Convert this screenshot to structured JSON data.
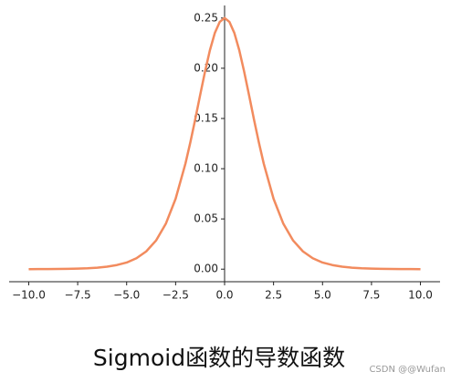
{
  "chart_data": {
    "type": "line",
    "title": "Sigmoid函数的导数函数",
    "watermark": "CSDN @@Wufan",
    "x": [
      -10,
      -9.5,
      -9,
      -8.5,
      -8,
      -7.5,
      -7,
      -6.5,
      -6,
      -5.5,
      -5,
      -4.5,
      -4,
      -3.5,
      -3,
      -2.5,
      -2,
      -1.75,
      -1.5,
      -1.25,
      -1,
      -0.75,
      -0.5,
      -0.25,
      0,
      0.25,
      0.5,
      0.75,
      1,
      1.25,
      1.5,
      1.75,
      2,
      2.5,
      3,
      3.5,
      4,
      4.5,
      5,
      5.5,
      6,
      6.5,
      7,
      7.5,
      8,
      8.5,
      9,
      9.5,
      10
    ],
    "values": [
      0.0,
      0.0001,
      0.0001,
      0.0002,
      0.0003,
      0.0006,
      0.0009,
      0.0015,
      0.0025,
      0.0041,
      0.0066,
      0.0109,
      0.0177,
      0.0285,
      0.0452,
      0.0701,
      0.105,
      0.1261,
      0.1491,
      0.1731,
      0.1966,
      0.2179,
      0.235,
      0.2461,
      0.25,
      0.2461,
      0.235,
      0.2179,
      0.1966,
      0.1731,
      0.1491,
      0.1261,
      0.105,
      0.0701,
      0.0452,
      0.0285,
      0.0177,
      0.0109,
      0.0066,
      0.0041,
      0.0025,
      0.0015,
      0.0009,
      0.0006,
      0.0003,
      0.0002,
      0.0001,
      0.0001,
      0.0
    ],
    "color": "#f28b5e",
    "xlim": [
      -11,
      11
    ],
    "ylim": [
      -0.0125,
      0.2625
    ],
    "xticks": [
      {
        "value": -10,
        "label": "−10.0"
      },
      {
        "value": -7.5,
        "label": "−7.5"
      },
      {
        "value": -5,
        "label": "−5.0"
      },
      {
        "value": -2.5,
        "label": "−2.5"
      },
      {
        "value": 0,
        "label": "0.0"
      },
      {
        "value": 2.5,
        "label": "2.5"
      },
      {
        "value": 5,
        "label": "5.0"
      },
      {
        "value": 7.5,
        "label": "7.5"
      },
      {
        "value": 10,
        "label": "10.0"
      }
    ],
    "yticks": [
      {
        "value": 0,
        "label": "0.00"
      },
      {
        "value": 0.05,
        "label": "0.05"
      },
      {
        "value": 0.1,
        "label": "0.10"
      },
      {
        "value": 0.15,
        "label": "0.15"
      },
      {
        "value": 0.2,
        "label": "0.20"
      },
      {
        "value": 0.25,
        "label": "0.25"
      }
    ],
    "grid": false
  }
}
